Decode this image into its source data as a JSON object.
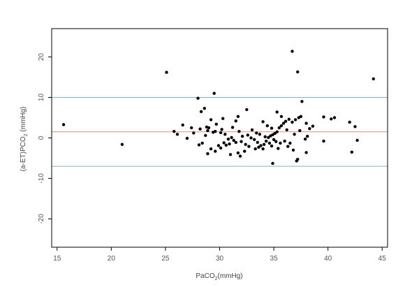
{
  "chart_data": {
    "type": "scatter",
    "xlabel": "PaCO",
    "xlabel_sub": "2",
    "xlabel_suffix": "(mmHg)",
    "ylabel": "(a-ET)PCO",
    "ylabel_sub": "2",
    "ylabel_suffix": " (mmHg)",
    "xlim": [
      14.5,
      45.5
    ],
    "ylim": [
      -27,
      27
    ],
    "xticks": [
      15,
      20,
      25,
      30,
      35,
      40,
      45
    ],
    "yticks": [
      -20,
      -10,
      0,
      10,
      20
    ],
    "grid": false,
    "reference_lines": [
      {
        "y": 10,
        "color": "#8ab0c4"
      },
      {
        "y": 1.5,
        "color": "#e08a80"
      },
      {
        "y": -7,
        "color": "#8ab0c4"
      }
    ],
    "points": [
      [
        15.6,
        3.3
      ],
      [
        21.0,
        -1.6
      ],
      [
        25.1,
        16.2
      ],
      [
        44.2,
        14.6
      ],
      [
        36.7,
        21.4
      ],
      [
        37.2,
        16.3
      ],
      [
        29.5,
        11.0
      ],
      [
        28.0,
        9.8
      ],
      [
        28.6,
        7.3
      ],
      [
        28.3,
        6.5
      ],
      [
        32.5,
        7.0
      ],
      [
        30.3,
        4.8
      ],
      [
        29.2,
        4.5
      ],
      [
        29.7,
        3.4
      ],
      [
        29.0,
        2.5
      ],
      [
        28.8,
        2.7
      ],
      [
        28.2,
        2.2
      ],
      [
        28.9,
        1.8
      ],
      [
        29.4,
        1.4
      ],
      [
        29.6,
        1.6
      ],
      [
        30.1,
        1.3
      ],
      [
        31.7,
        5.3
      ],
      [
        31.5,
        4.2
      ],
      [
        31.2,
        2.6
      ],
      [
        31.8,
        1.6
      ],
      [
        30.5,
        0.9
      ],
      [
        30.8,
        -0.3
      ],
      [
        31.1,
        0.1
      ],
      [
        31.3,
        -0.6
      ],
      [
        31.5,
        -1.1
      ],
      [
        30.9,
        -1.5
      ],
      [
        30.4,
        -1.2
      ],
      [
        29.9,
        -1.9
      ],
      [
        29.2,
        -2.7
      ],
      [
        28.9,
        -3.9
      ],
      [
        29.6,
        -3.3
      ],
      [
        31.0,
        -4.1
      ],
      [
        31.7,
        -3.7
      ],
      [
        31.9,
        -4.5
      ],
      [
        32.3,
        -3.3
      ],
      [
        32.7,
        -2.1
      ],
      [
        32.4,
        -1.6
      ],
      [
        32.0,
        -0.9
      ],
      [
        32.1,
        0.4
      ],
      [
        32.6,
        0.7
      ],
      [
        32.9,
        0.0
      ],
      [
        33.2,
        -0.4
      ],
      [
        33.5,
        -1.1
      ],
      [
        33.8,
        -1.9
      ],
      [
        33.3,
        -2.7
      ],
      [
        33.6,
        -2.3
      ],
      [
        34.0,
        -2.7
      ],
      [
        34.1,
        -1.6
      ],
      [
        34.3,
        -0.8
      ],
      [
        34.5,
        0.1
      ],
      [
        34.7,
        0.5
      ],
      [
        34.9,
        0.8
      ],
      [
        35.1,
        1.1
      ],
      [
        35.3,
        1.5
      ],
      [
        35.5,
        2.5
      ],
      [
        35.7,
        3.0
      ],
      [
        35.9,
        3.6
      ],
      [
        36.1,
        4.1
      ],
      [
        36.4,
        4.6
      ],
      [
        36.7,
        3.9
      ],
      [
        37.0,
        4.5
      ],
      [
        37.3,
        5.0
      ],
      [
        37.5,
        5.3
      ],
      [
        37.6,
        9.0
      ],
      [
        35.3,
        6.4
      ],
      [
        35.7,
        5.3
      ],
      [
        34.0,
        4.0
      ],
      [
        34.4,
        3.0
      ],
      [
        34.8,
        2.4
      ],
      [
        35.0,
        -0.4
      ],
      [
        35.2,
        -0.9
      ],
      [
        34.6,
        -1.3
      ],
      [
        34.8,
        -2.0
      ],
      [
        35.4,
        -2.6
      ],
      [
        35.6,
        -1.3
      ],
      [
        36.0,
        -0.8
      ],
      [
        36.3,
        -2.1
      ],
      [
        36.5,
        -1.3
      ],
      [
        36.8,
        -3.0
      ],
      [
        37.2,
        -5.3
      ],
      [
        37.1,
        -5.7
      ],
      [
        34.9,
        -6.3
      ],
      [
        38.0,
        -3.6
      ],
      [
        37.9,
        -0.3
      ],
      [
        38.1,
        0.4
      ],
      [
        38.3,
        2.3
      ],
      [
        38.6,
        2.9
      ],
      [
        38.0,
        3.6
      ],
      [
        39.6,
        5.2
      ],
      [
        40.3,
        4.7
      ],
      [
        40.6,
        5.0
      ],
      [
        39.6,
        -0.8
      ],
      [
        42.0,
        3.9
      ],
      [
        42.5,
        2.8
      ],
      [
        42.2,
        -3.5
      ],
      [
        42.7,
        -0.6
      ],
      [
        33.0,
        2.0
      ],
      [
        33.4,
        1.2
      ],
      [
        34.2,
        0.3
      ],
      [
        27.0,
        -0.1
      ],
      [
        26.6,
        3.2
      ],
      [
        27.4,
        2.5
      ],
      [
        26.1,
        0.9
      ],
      [
        25.8,
        1.6
      ],
      [
        28.1,
        -1.7
      ],
      [
        28.4,
        -1.3
      ],
      [
        30.6,
        -1.8
      ],
      [
        30.1,
        -2.5
      ],
      [
        27.6,
        1.2
      ],
      [
        36.2,
        2.0
      ],
      [
        36.9,
        0.9
      ],
      [
        37.4,
        1.8
      ],
      [
        33.7,
        0.9
      ],
      [
        30.2,
        2.1
      ],
      [
        28.7,
        0.6
      ]
    ]
  }
}
